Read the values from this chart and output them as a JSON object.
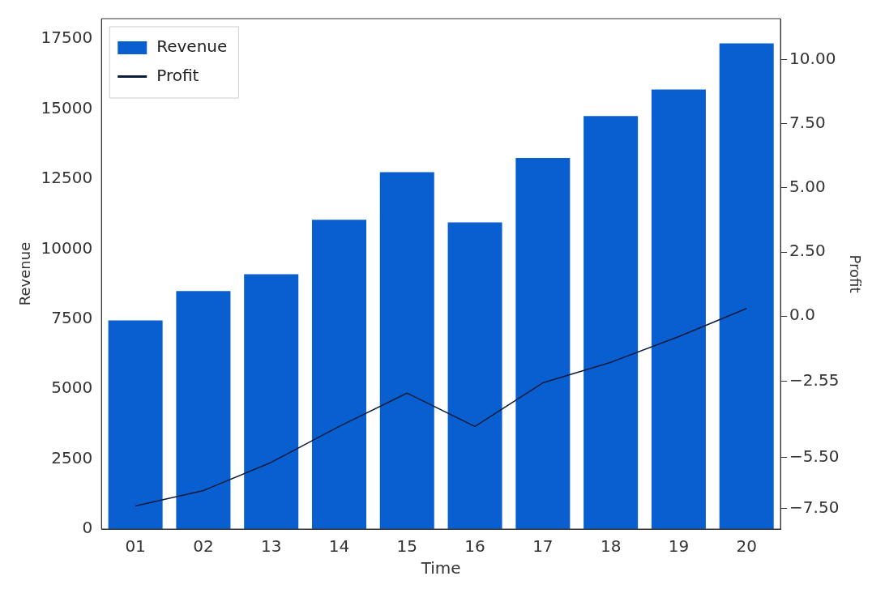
{
  "chart_data": {
    "type": "bar",
    "xlabel": "Time",
    "ylabel": "Revenue",
    "y2label": "Profit",
    "categories": [
      "01",
      "02",
      "13",
      "14",
      "15",
      "16",
      "17",
      "18",
      "19",
      "20"
    ],
    "series": [
      {
        "name": "Revenue",
        "color": "#0a5fd0",
        "values": [
          7450,
          8500,
          9100,
          11050,
          12750,
          10950,
          13250,
          14750,
          15700,
          17350
        ]
      },
      {
        "name": "Profit",
        "type": "line",
        "axis": "y2",
        "color": "#0b1b3a",
        "values": [
          -7.4,
          -6.8,
          -5.7,
          -4.3,
          -3.0,
          -4.3,
          -2.6,
          -1.8,
          -0.8,
          0.3
        ]
      }
    ],
    "ylim": [
      0,
      18230
    ],
    "yticks": [
      0,
      2500,
      5000,
      7500,
      10000,
      12500,
      15000,
      17500
    ],
    "y2lim": [
      -8.3,
      11.6
    ],
    "y2ticks": [
      {
        "value": 10,
        "label": "10.00"
      },
      {
        "value": 7.5,
        "label": "7.50"
      },
      {
        "value": 5,
        "label": "5.00"
      },
      {
        "value": 2.5,
        "label": "2.50"
      },
      {
        "value": 0,
        "label": "0.0"
      },
      {
        "value": -2.55,
        "label": "−2.55"
      },
      {
        "value": -5.5,
        "label": "−5.50"
      },
      {
        "value": -7.5,
        "label": "−7.50"
      }
    ],
    "grid": false,
    "legend": "top left",
    "marker": "none"
  }
}
